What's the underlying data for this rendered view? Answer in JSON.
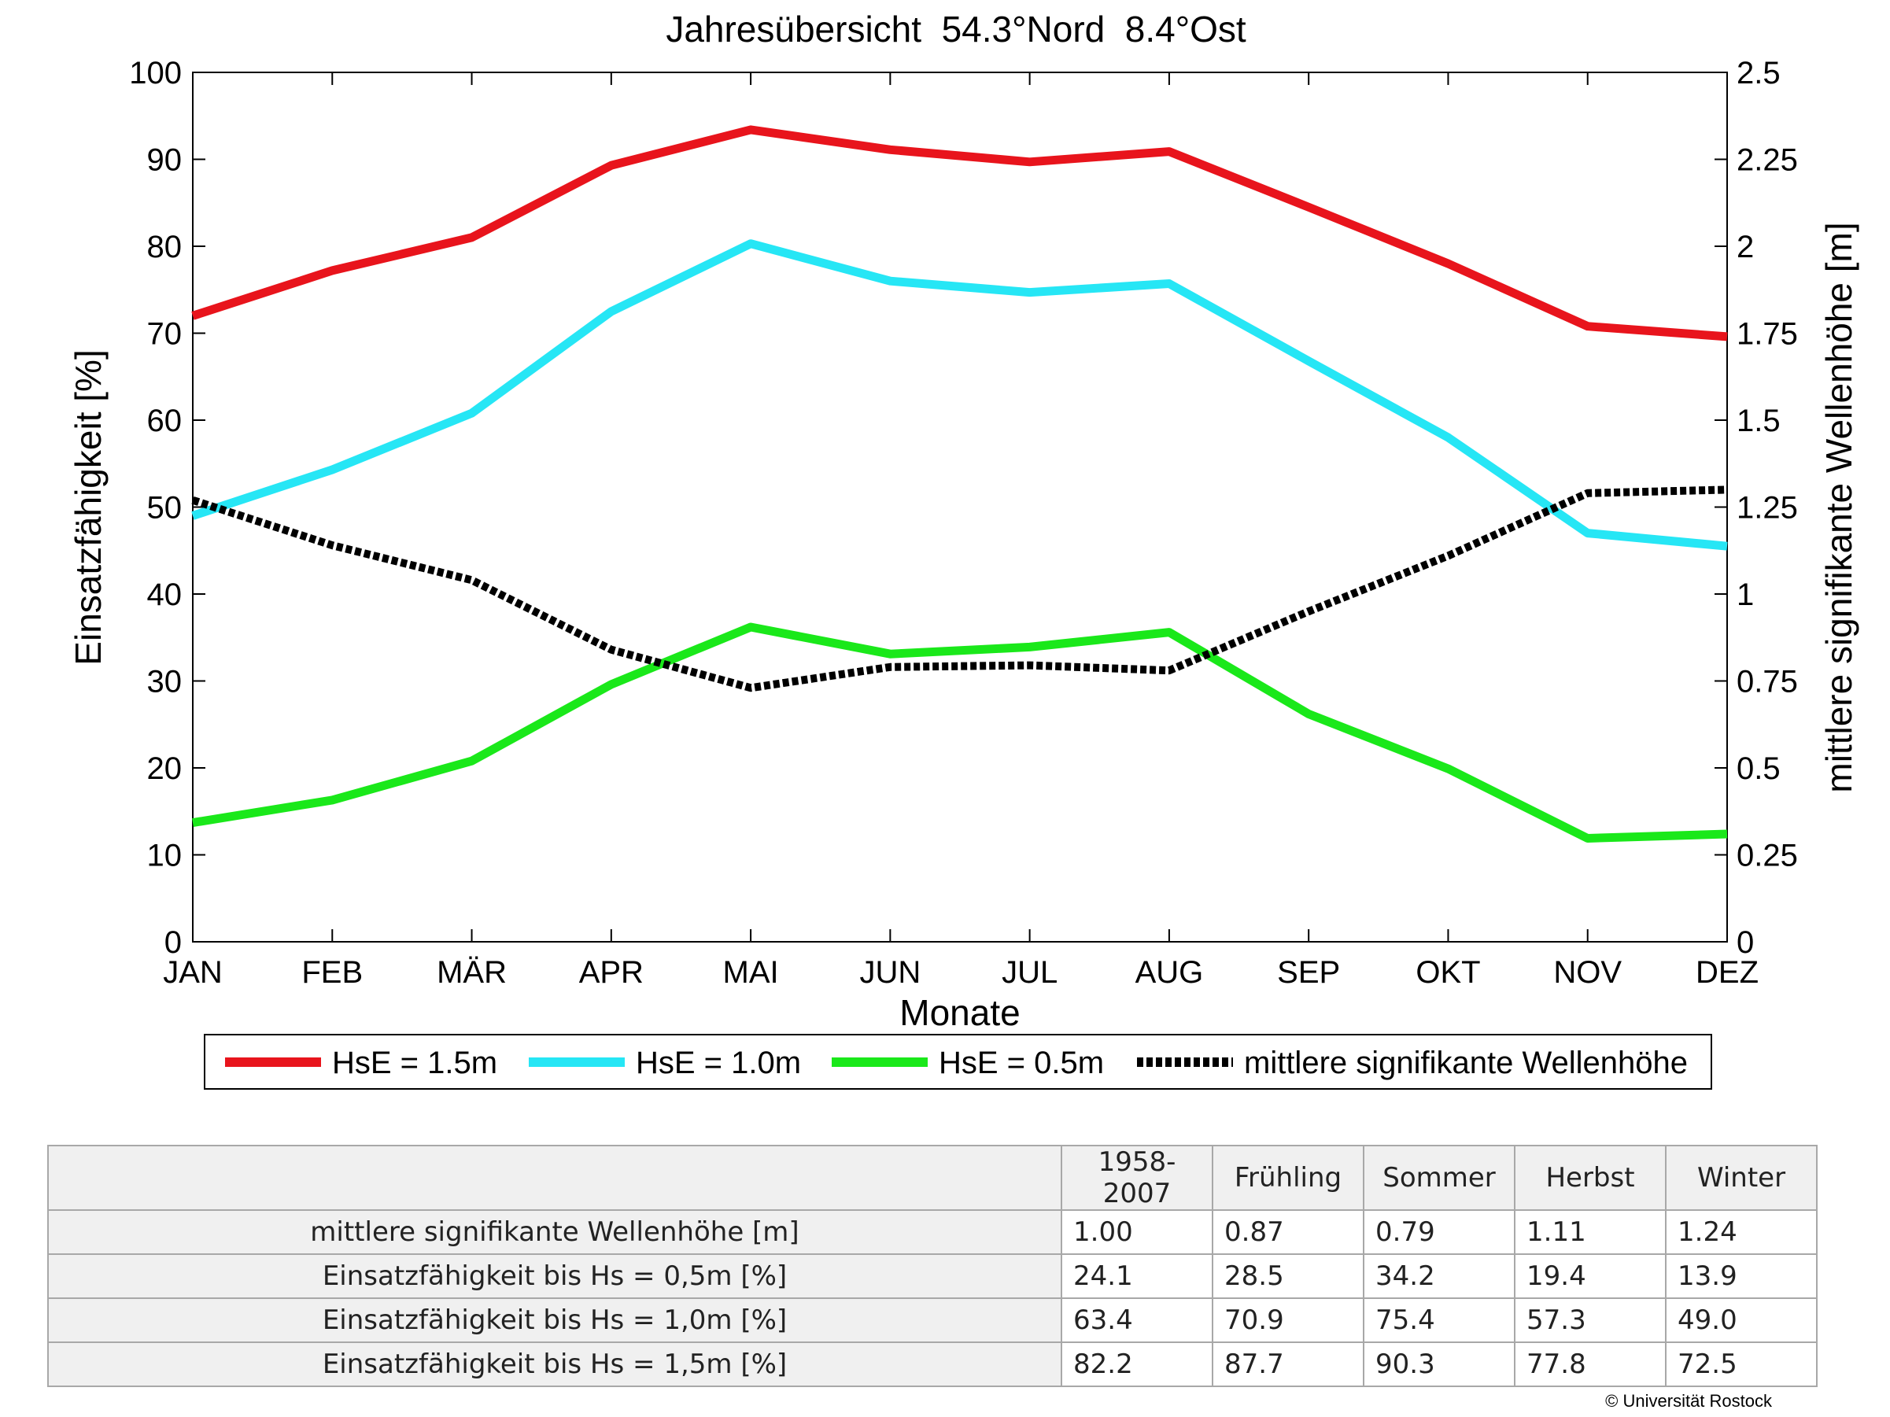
{
  "chart_data": {
    "type": "line",
    "title": "Jahresübersicht  54.3°Nord  8.4°Ost",
    "xlabel": "Monate",
    "ylabel_left": "Einsatzfähigkeit [%]",
    "ylabel_right": "mittlere signifikante Wellenhöhe [m]",
    "categories": [
      "JAN",
      "FEB",
      "MÄR",
      "APR",
      "MAI",
      "JUN",
      "JUL",
      "AUG",
      "SEP",
      "OKT",
      "NOV",
      "DEZ"
    ],
    "ylim_left": [
      0,
      100
    ],
    "ylim_right": [
      0,
      2.5
    ],
    "yticks_left": [
      "0",
      "10",
      "20",
      "30",
      "40",
      "50",
      "60",
      "70",
      "80",
      "90",
      "100"
    ],
    "yticks_right": [
      "0",
      "0.25",
      "0.5",
      "0.75",
      "1",
      "1.25",
      "1.5",
      "1.75",
      "2",
      "2.25",
      "2.5"
    ],
    "grid": false,
    "legend_position": "bottom",
    "series": [
      {
        "name": "HsE = 1.5m",
        "axis": "left",
        "color": "#e8141c",
        "style": "solid",
        "values": [
          72,
          77.2,
          81,
          89.3,
          93.4,
          91.1,
          89.7,
          90.9,
          84.5,
          78,
          70.8,
          69.6
        ]
      },
      {
        "name": "HsE = 1.0m",
        "axis": "left",
        "color": "#26e6f5",
        "style": "solid",
        "values": [
          49,
          54.3,
          60.8,
          72.5,
          80.3,
          76,
          74.7,
          75.7,
          66.8,
          58,
          47,
          45.5
        ]
      },
      {
        "name": "HsE = 0.5m",
        "axis": "left",
        "color": "#1ae81a",
        "style": "solid",
        "values": [
          13.7,
          16.3,
          20.8,
          29.6,
          36.2,
          33.1,
          33.9,
          35.6,
          26.2,
          19.9,
          11.9,
          12.4
        ]
      },
      {
        "name": "mittlere signifikante Wellenhöhe",
        "axis": "right",
        "color": "#000000",
        "style": "dotted",
        "values": [
          1.27,
          1.14,
          1.04,
          0.84,
          0.73,
          0.79,
          0.795,
          0.78,
          0.95,
          1.11,
          1.29,
          1.3
        ]
      }
    ]
  },
  "table": {
    "headers": [
      "1958-2007",
      "Frühling",
      "Sommer",
      "Herbst",
      "Winter"
    ],
    "rows": [
      {
        "label": "mittlere signifikante Wellenhöhe [m]",
        "values": [
          "1.00",
          "0.87",
          "0.79",
          "1.11",
          "1.24"
        ]
      },
      {
        "label": "Einsatzfähigkeit bis Hs = 0,5m [%]",
        "values": [
          "24.1",
          "28.5",
          "34.2",
          "19.4",
          "13.9"
        ]
      },
      {
        "label": "Einsatzfähigkeit bis Hs = 1,0m [%]",
        "values": [
          "63.4",
          "70.9",
          "75.4",
          "57.3",
          "49.0"
        ]
      },
      {
        "label": "Einsatzfähigkeit bis Hs = 1,5m [%]",
        "values": [
          "82.2",
          "87.7",
          "90.3",
          "77.8",
          "72.5"
        ]
      }
    ]
  },
  "copyright": "© Universität Rostock"
}
